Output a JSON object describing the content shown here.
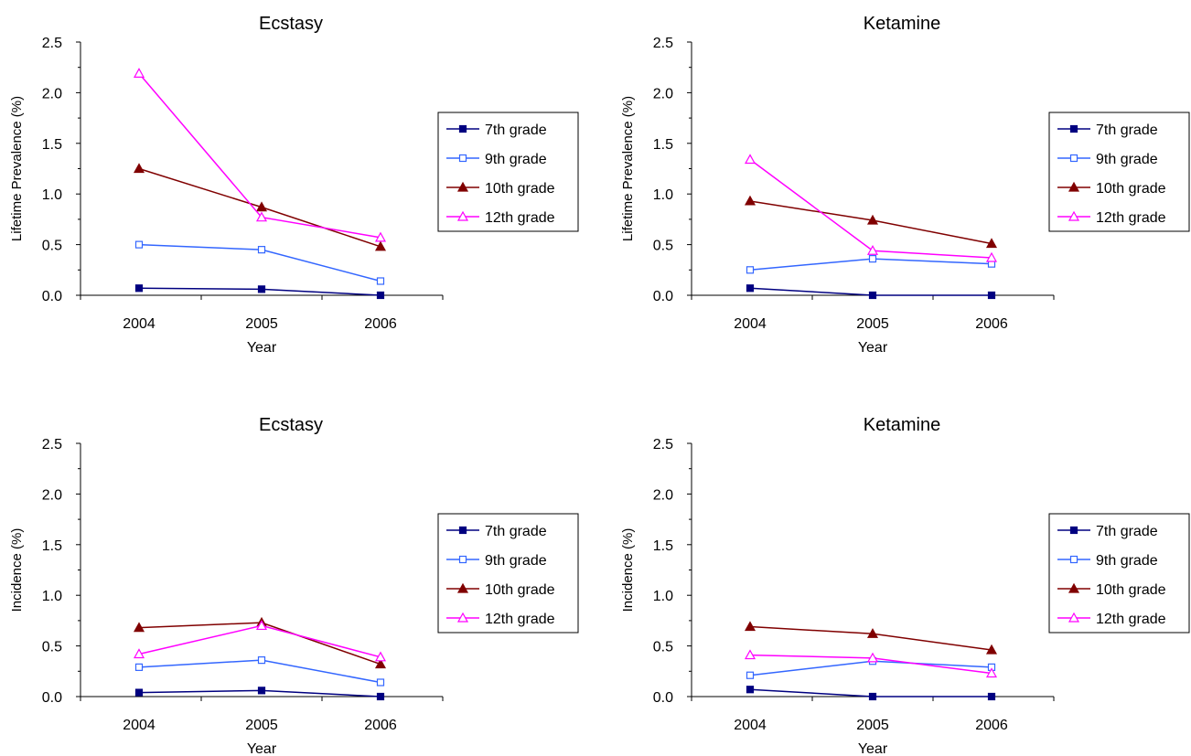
{
  "legend_entries": [
    "7th grade",
    "9th grade",
    "10th grade",
    "12th grade"
  ],
  "series_styles": [
    {
      "color": "#000080",
      "marker": "square-filled"
    },
    {
      "color": "#3366ff",
      "marker": "square-open"
    },
    {
      "color": "#800000",
      "marker": "triangle-filled"
    },
    {
      "color": "#ff00ff",
      "marker": "triangle-open"
    }
  ],
  "chart_data": [
    {
      "type": "line",
      "title": "Ecstasy",
      "xlabel": "Year",
      "ylabel": "Lifetime Prevalence (%)",
      "categories": [
        "2004",
        "2005",
        "2006"
      ],
      "yticks": [
        "0.0",
        "0.5",
        "1.0",
        "1.5",
        "2.0",
        "2.5"
      ],
      "ylim": [
        0,
        2.5
      ],
      "legend_position": "right",
      "series": [
        {
          "name": "7th grade",
          "values": [
            0.07,
            0.06,
            0.0
          ]
        },
        {
          "name": "9th grade",
          "values": [
            0.5,
            0.45,
            0.14
          ]
        },
        {
          "name": "10th grade",
          "values": [
            1.25,
            0.87,
            0.48
          ]
        },
        {
          "name": "12th grade",
          "values": [
            2.19,
            0.77,
            0.57
          ]
        }
      ]
    },
    {
      "type": "line",
      "title": "Ketamine",
      "xlabel": "Year",
      "ylabel": "Lifetime Prevalence (%)",
      "categories": [
        "2004",
        "2005",
        "2006"
      ],
      "yticks": [
        "0.0",
        "0.5",
        "1.0",
        "1.5",
        "2.0",
        "2.5"
      ],
      "ylim": [
        0,
        2.5
      ],
      "legend_position": "right",
      "series": [
        {
          "name": "7th grade",
          "values": [
            0.07,
            0.0,
            0.0
          ]
        },
        {
          "name": "9th grade",
          "values": [
            0.25,
            0.36,
            0.31
          ]
        },
        {
          "name": "10th grade",
          "values": [
            0.93,
            0.74,
            0.51
          ]
        },
        {
          "name": "12th grade",
          "values": [
            1.34,
            0.44,
            0.37
          ]
        }
      ]
    },
    {
      "type": "line",
      "title": "Ecstasy",
      "xlabel": "Year",
      "ylabel": "Incidence (%)",
      "categories": [
        "2004",
        "2005",
        "2006"
      ],
      "yticks": [
        "0.0",
        "0.5",
        "1.0",
        "1.5",
        "2.0",
        "2.5"
      ],
      "ylim": [
        0,
        2.5
      ],
      "legend_position": "right",
      "series": [
        {
          "name": "7th grade",
          "values": [
            0.04,
            0.06,
            0.0
          ]
        },
        {
          "name": "9th grade",
          "values": [
            0.29,
            0.36,
            0.14
          ]
        },
        {
          "name": "10th grade",
          "values": [
            0.68,
            0.73,
            0.32
          ]
        },
        {
          "name": "12th grade",
          "values": [
            0.42,
            0.7,
            0.39
          ]
        }
      ]
    },
    {
      "type": "line",
      "title": "Ketamine",
      "xlabel": "Year",
      "ylabel": "Incidence (%)",
      "categories": [
        "2004",
        "2005",
        "2006"
      ],
      "yticks": [
        "0.0",
        "0.5",
        "1.0",
        "1.5",
        "2.0",
        "2.5"
      ],
      "ylim": [
        0,
        2.5
      ],
      "legend_position": "right",
      "series": [
        {
          "name": "7th grade",
          "values": [
            0.07,
            0.0,
            0.0
          ]
        },
        {
          "name": "9th grade",
          "values": [
            0.21,
            0.35,
            0.29
          ]
        },
        {
          "name": "10th grade",
          "values": [
            0.69,
            0.62,
            0.46
          ]
        },
        {
          "name": "12th grade",
          "values": [
            0.41,
            0.38,
            0.23
          ]
        }
      ]
    }
  ]
}
